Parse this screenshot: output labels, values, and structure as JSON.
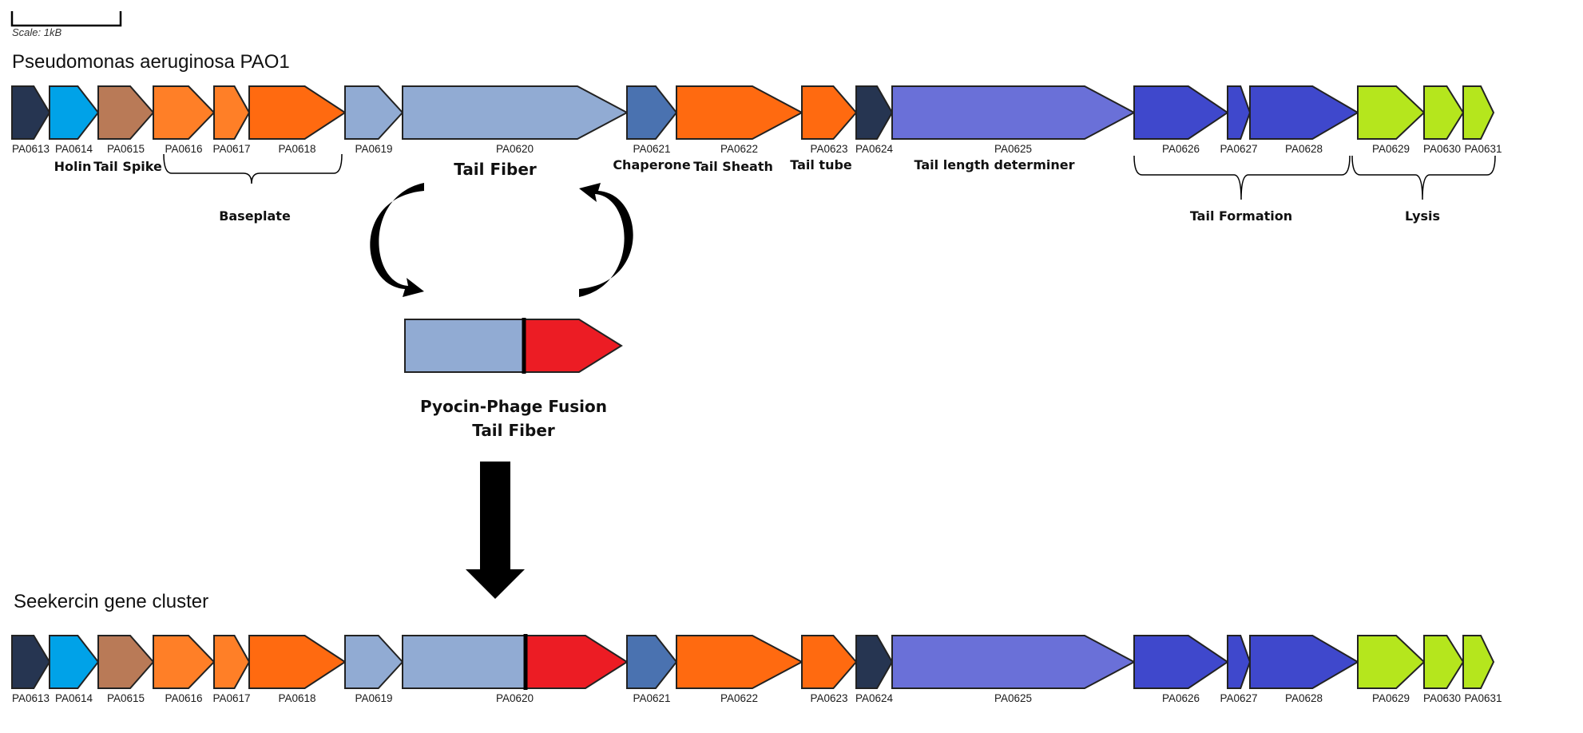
{
  "scale_label": "Scale: 1kB",
  "row1": {
    "title": "Pseudomonas aeruginosa PAO1",
    "function_labels": {
      "holin": "Holin",
      "tail_spike": "Tail Spike",
      "tail_fiber": "Tail Fiber",
      "chaperone": "Chaperone",
      "tail_sheath": "Tail Sheath",
      "tail_tube": "Tail tube",
      "tail_length": "Tail length determiner"
    },
    "groups": {
      "baseplate": "Baseplate",
      "tail_formation": "Tail Formation",
      "lysis": "Lysis"
    }
  },
  "fusion": {
    "line1": "Pyocin-Phage Fusion",
    "line2": "Tail Fiber",
    "colors": {
      "pyocin": "#91abd3",
      "phage": "#ec1c24"
    }
  },
  "row2": {
    "title": "Seekercin gene cluster"
  },
  "genes": [
    {
      "id": "PA0613",
      "color": "#263551"
    },
    {
      "id": "PA0614",
      "color": "#00a2e8"
    },
    {
      "id": "PA0615",
      "color": "#b97a57"
    },
    {
      "id": "PA0616",
      "color": "#ff7f27"
    },
    {
      "id": "PA0617",
      "color": "#ff7f27"
    },
    {
      "id": "PA0618",
      "color": "#ff6a10"
    },
    {
      "id": "PA0619",
      "color": "#91abd3"
    },
    {
      "id": "PA0620",
      "color": "#91abd3"
    },
    {
      "id": "PA0621",
      "color": "#4a72b0"
    },
    {
      "id": "PA0622",
      "color": "#ff6a10"
    },
    {
      "id": "PA0623",
      "color": "#ff6a10"
    },
    {
      "id": "PA0624",
      "color": "#263551"
    },
    {
      "id": "PA0625",
      "color": "#6a70d8"
    },
    {
      "id": "PA0626",
      "color": "#3f48cc"
    },
    {
      "id": "PA0627",
      "color": "#3f48cc"
    },
    {
      "id": "PA0628",
      "color": "#3f48cc"
    },
    {
      "id": "PA0629",
      "color": "#b5e61d"
    },
    {
      "id": "PA0630",
      "color": "#b5e61d"
    },
    {
      "id": "PA0631",
      "color": "#b5e61d"
    }
  ]
}
